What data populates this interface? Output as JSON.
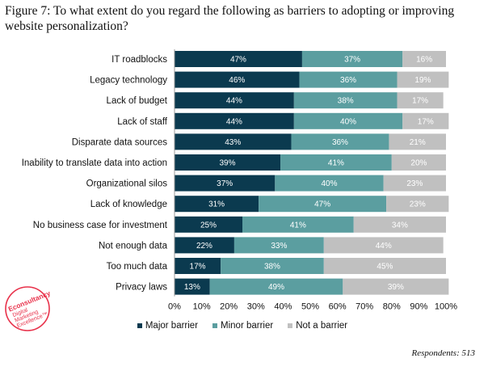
{
  "figure": {
    "title": "Figure 7: To what extent do you regard the following as barriers to adopting or improving website personalization?",
    "footnote": "Respondents: 513"
  },
  "logo": {
    "brand": "Econsultancy",
    "line1": "Digital",
    "line2": "Marketing",
    "line3": "Excellence™"
  },
  "colors": {
    "major": "#0b3a4f",
    "minor": "#5b9ea0",
    "not": "#c0c0c0",
    "logo": "#e8314a"
  },
  "chart_data": {
    "type": "bar",
    "orientation": "horizontal",
    "stacked": true,
    "categories": [
      "IT roadblocks",
      "Legacy technology",
      "Lack of budget",
      "Lack of staff",
      "Disparate data sources",
      "Inability to translate data into action",
      "Organizational silos",
      "Lack of knowledge",
      "No business case for investment",
      "Not enough data",
      "Too much data",
      "Privacy laws"
    ],
    "series": [
      {
        "name": "Major barrier",
        "values": [
          47,
          46,
          44,
          44,
          43,
          39,
          37,
          31,
          25,
          22,
          17,
          13
        ]
      },
      {
        "name": "Minor barrier",
        "values": [
          37,
          36,
          38,
          40,
          36,
          41,
          40,
          47,
          41,
          33,
          38,
          49
        ]
      },
      {
        "name": "Not a barrier",
        "values": [
          16,
          19,
          17,
          17,
          21,
          20,
          23,
          23,
          34,
          44,
          45,
          39
        ]
      }
    ],
    "value_suffix": "%",
    "xlim": [
      0,
      100
    ],
    "xticks": [
      "0%",
      "10%",
      "20%",
      "30%",
      "40%",
      "50%",
      "60%",
      "70%",
      "80%",
      "90%",
      "100%"
    ],
    "legend_position": "bottom",
    "grid": false
  }
}
